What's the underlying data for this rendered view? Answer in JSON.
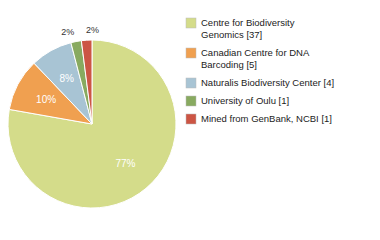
{
  "chart_data": {
    "type": "pie",
    "categories": [
      "Centre for Biodiversity\nGenomics [37]",
      "Canadian Centre for DNA\nBarcoding [5]",
      "Naturalis Biodiversity Center [4]",
      "University of Oulu [1]",
      "Mined from GenBank, NCBI [1]"
    ],
    "values": [
      77,
      10,
      8,
      2,
      2
    ],
    "value_labels": [
      "77%",
      "10%",
      "8%",
      "2%",
      "2%"
    ],
    "colors": [
      "#d4dc8a",
      "#f0a050",
      "#a8c4d4",
      "#88aa60",
      "#cc5544"
    ],
    "data_labels": true,
    "legend": "right"
  }
}
